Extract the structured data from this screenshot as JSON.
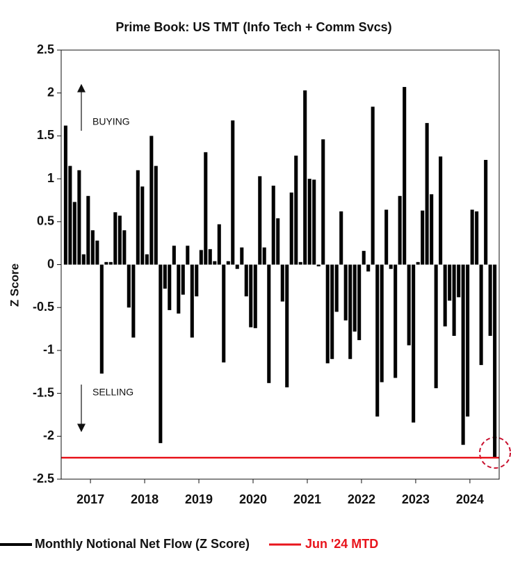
{
  "chart_data": {
    "type": "bar",
    "title": "Prime Book: US TMT (Info Tech + Comm Svcs)",
    "y_label": "Z Score",
    "annotations": [
      "BUYING",
      "SELLING"
    ],
    "x": [
      2016.542,
      2016.625,
      2016.708,
      2016.792,
      2016.875,
      2016.958,
      2017.042,
      2017.125,
      2017.208,
      2017.292,
      2017.375,
      2017.458,
      2017.542,
      2017.625,
      2017.708,
      2017.792,
      2017.875,
      2017.958,
      2018.042,
      2018.125,
      2018.208,
      2018.292,
      2018.375,
      2018.458,
      2018.542,
      2018.625,
      2018.708,
      2018.792,
      2018.875,
      2018.958,
      2019.042,
      2019.125,
      2019.208,
      2019.292,
      2019.375,
      2019.458,
      2019.542,
      2019.625,
      2019.708,
      2019.792,
      2019.875,
      2019.958,
      2020.042,
      2020.125,
      2020.208,
      2020.292,
      2020.375,
      2020.458,
      2020.542,
      2020.625,
      2020.708,
      2020.792,
      2020.875,
      2020.958,
      2021.042,
      2021.125,
      2021.208,
      2021.292,
      2021.375,
      2021.458,
      2021.542,
      2021.625,
      2021.708,
      2021.792,
      2021.875,
      2021.958,
      2022.042,
      2022.125,
      2022.208,
      2022.292,
      2022.375,
      2022.458,
      2022.542,
      2022.625,
      2022.708,
      2022.792,
      2022.875,
      2022.958,
      2023.042,
      2023.125,
      2023.208,
      2023.292,
      2023.375,
      2023.458,
      2023.542,
      2023.625,
      2023.708,
      2023.792,
      2023.875,
      2023.958,
      2024.042,
      2024.125,
      2024.208,
      2024.292,
      2024.375,
      2024.458
    ],
    "series": [
      {
        "name": "Monthly Notional Net Flow (Z Score)",
        "color": "#000000",
        "values": [
          1.62,
          1.15,
          0.73,
          1.1,
          0.12,
          0.8,
          0.4,
          0.28,
          -1.27,
          0.03,
          0.03,
          0.61,
          0.57,
          0.4,
          -0.5,
          -0.85,
          1.1,
          0.91,
          0.12,
          1.5,
          1.15,
          -2.08,
          -0.28,
          -0.53,
          0.22,
          -0.57,
          -0.35,
          0.22,
          -0.85,
          -0.37,
          0.17,
          1.31,
          0.18,
          0.04,
          0.47,
          -1.14,
          0.04,
          1.68,
          -0.05,
          0.2,
          -0.37,
          -0.73,
          -0.74,
          1.03,
          0.2,
          -1.38,
          0.92,
          0.54,
          -0.43,
          -1.43,
          0.84,
          1.27,
          0.03,
          2.03,
          1.0,
          0.99,
          -0.02,
          1.46,
          -1.15,
          -1.1,
          -0.55,
          0.62,
          -0.65,
          -1.1,
          -0.78,
          -0.88,
          0.16,
          -0.08,
          1.84,
          -1.77,
          -1.37,
          0.64,
          -0.05,
          -1.32,
          0.8,
          2.07,
          -0.94,
          -1.84,
          0.03,
          0.63,
          1.65,
          0.82,
          -1.44,
          1.26,
          -0.72,
          -0.42,
          -0.83,
          -0.38,
          -2.1,
          -1.77,
          0.64,
          0.62,
          -1.17,
          1.22,
          -0.83,
          -2.25
        ]
      }
    ],
    "reference_line": {
      "name": "Jun '24 MTD",
      "value": -2.25,
      "color": "#e8141c"
    },
    "xlim": [
      2016.46,
      2024.54
    ],
    "xticks": [
      2017,
      2018,
      2019,
      2020,
      2021,
      2022,
      2023,
      2024
    ],
    "ylim": [
      -2.5,
      2.5
    ],
    "yticks": [
      2.5,
      2,
      1.5,
      1,
      0.5,
      0,
      -0.5,
      -1,
      -1.5,
      -2,
      -2.5
    ],
    "grid": false,
    "legend": "bottom"
  }
}
